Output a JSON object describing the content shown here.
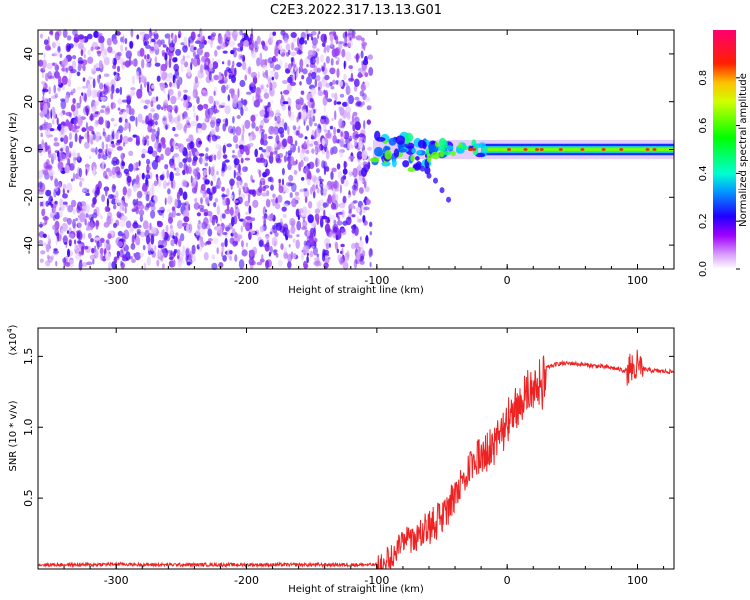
{
  "title": "C2E3.2022.317.13.13.G01",
  "chart_data": [
    {
      "type": "heatmap",
      "title": "",
      "xlabel": "Height of straight line (km)",
      "ylabel": "Frequency (Hz)",
      "xlim": [
        -360,
        128
      ],
      "ylim": [
        -50,
        50
      ],
      "xticks": [
        -300,
        -200,
        -100,
        0,
        100
      ],
      "yticks": [
        -40,
        -20,
        0,
        20,
        40
      ],
      "colorbar": {
        "label": "Normalized spectral amplitude",
        "range": [
          0.0,
          1.0
        ],
        "ticks": [
          0.0,
          0.2,
          0.4,
          0.6,
          0.8
        ],
        "colormap": [
          "#ffffff",
          "#b000ff",
          "#0000ff",
          "#00ffff",
          "#00ff00",
          "#ffff00",
          "#ff0000",
          "#ff0080"
        ]
      },
      "regions": [
        {
          "x": [
            -360,
            -103
          ],
          "description_value": 0.25
        },
        {
          "x": [
            -103,
            128
          ],
          "center_freq": 0,
          "band_halfwidth": 3,
          "peak_value": 0.95
        }
      ]
    },
    {
      "type": "line",
      "title": "",
      "xlabel": "Height of straight line (km)",
      "ylabel": "SNR (10 * v/v)",
      "y_multiplier_label": "(x10",
      "y_multiplier_exp": "4",
      "xlim": [
        -360,
        128
      ],
      "ylim": [
        0,
        1.7
      ],
      "xticks": [
        -300,
        -200,
        -100,
        0,
        100
      ],
      "yticks": [
        0.5,
        1.0,
        1.5
      ],
      "series": [
        {
          "color": "#ee2222",
          "x": [
            -360,
            -340,
            -320,
            -300,
            -280,
            -260,
            -240,
            -220,
            -200,
            -180,
            -160,
            -140,
            -120,
            -100,
            -90,
            -80,
            -70,
            -60,
            -50,
            -40,
            -30,
            -20,
            -10,
            0,
            10,
            20,
            30,
            40,
            50,
            60,
            70,
            80,
            90,
            100,
            110,
            128
          ],
          "values": [
            0.03,
            0.03,
            0.03,
            0.035,
            0.03,
            0.03,
            0.03,
            0.03,
            0.03,
            0.03,
            0.03,
            0.03,
            0.03,
            0.03,
            0.12,
            0.22,
            0.25,
            0.35,
            0.42,
            0.55,
            0.75,
            0.85,
            0.95,
            1.1,
            1.25,
            1.35,
            1.42,
            1.45,
            1.45,
            1.44,
            1.43,
            1.42,
            1.4,
            1.42,
            1.4,
            1.39
          ]
        }
      ]
    }
  ]
}
